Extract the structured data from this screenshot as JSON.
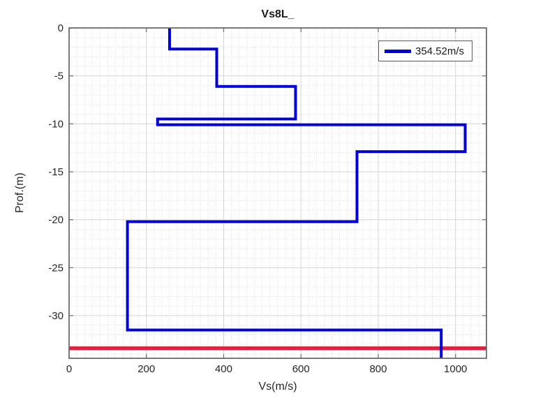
{
  "title": "Vs8L_",
  "legend": {
    "label": "354.52m/s"
  },
  "colors": {
    "profile_line": "#0000d9",
    "depth_limit_line": "#dc2340",
    "axis_box": "#6b6b6b",
    "tick_label": "#262626",
    "major_grid": "#d4d4d4",
    "minor_grid": "#dcdcdc",
    "background": "#ffffff"
  },
  "chart_data": {
    "type": "line",
    "subtype": "step-depth-profile",
    "title": "Vs8L_",
    "xlabel": "Vs(m/s)",
    "ylabel": "Prof.(m)",
    "xlim": [
      0,
      1080
    ],
    "ylim": [
      -34.45,
      0
    ],
    "x_ticks": [
      0,
      200,
      400,
      600,
      800,
      1000
    ],
    "y_ticks": [
      0,
      -5,
      -10,
      -15,
      -20,
      -25,
      -30
    ],
    "x_minor_step": 20,
    "y_minor_step": 1,
    "grid": true,
    "minor_grid": true,
    "legend_position": "top-right",
    "series": [
      {
        "name": "354.52m/s",
        "color": "#0000d9",
        "line_width": 4,
        "layers": [
          {
            "vs": 260,
            "top": 0,
            "bottom": -2.2
          },
          {
            "vs": 382,
            "top": -2.2,
            "bottom": -6.1
          },
          {
            "vs": 586,
            "top": -6.1,
            "bottom": -9.5
          },
          {
            "vs": 229,
            "top": -9.5,
            "bottom": -10.1
          },
          {
            "vs": 1025,
            "top": -10.1,
            "bottom": -12.9
          },
          {
            "vs": 745,
            "top": -12.9,
            "bottom": -20.2
          },
          {
            "vs": 151,
            "top": -20.2,
            "bottom": -31.5
          },
          {
            "vs": 963,
            "top": -31.5,
            "bottom": -34.45
          }
        ]
      },
      {
        "name": "depth-limit",
        "color": "#dc2340",
        "line_width": 5.5,
        "depth": -33.4,
        "x_range": [
          0,
          1080
        ]
      }
    ]
  }
}
